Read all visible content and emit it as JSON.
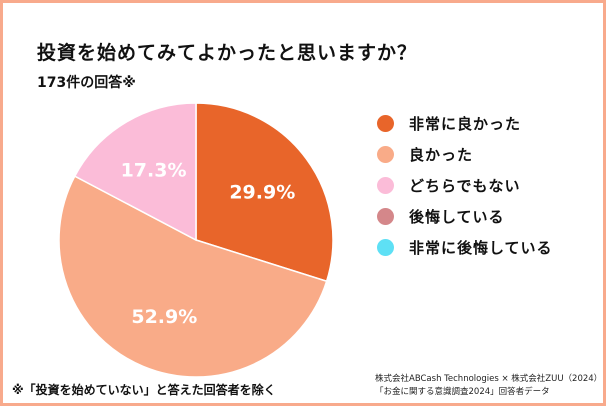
{
  "chart_data": {
    "type": "pie",
    "title": "投資を始めてみてよかったと思いますか？",
    "subtitle": "173件の回答※",
    "categories": [
      "非常に良かった",
      "良かった",
      "どちらでもない",
      "後悔している",
      "非常に後悔している"
    ],
    "values": [
      29.9,
      52.9,
      17.3,
      0,
      0
    ],
    "labels": [
      "29.9%",
      "52.9%",
      "17.3%",
      "",
      ""
    ],
    "colors": [
      "#e8652a",
      "#f9ab88",
      "#fbbcd8",
      "#d4878a",
      "#5ee0f5"
    ],
    "legend_position": "right"
  },
  "footnote": "※「投資を始めていない」と答えた回答者を除く",
  "source": [
    "株式会社ABCash Technologies × 株式会社ZUU（2024）",
    "「お金に関する意識調査2024」回答者データ"
  ]
}
